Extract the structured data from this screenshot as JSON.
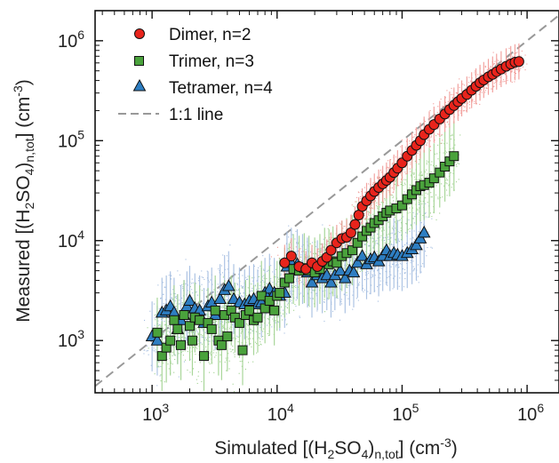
{
  "chart_data": {
    "type": "scatter",
    "x_scale": "log",
    "y_scale": "log",
    "xlim": [
      350,
      1800000
    ],
    "ylim": [
      300,
      2000000
    ],
    "x_ticks": [
      {
        "value": 1000,
        "base": "10",
        "exp": "3"
      },
      {
        "value": 10000,
        "base": "10",
        "exp": "4"
      },
      {
        "value": 100000,
        "base": "10",
        "exp": "5"
      },
      {
        "value": 1000000,
        "base": "10",
        "exp": "6"
      }
    ],
    "y_ticks": [
      {
        "value": 1000,
        "base": "10",
        "exp": "3"
      },
      {
        "value": 10000,
        "base": "10",
        "exp": "4"
      },
      {
        "value": 100000,
        "base": "10",
        "exp": "5"
      },
      {
        "value": 1000000,
        "base": "10",
        "exp": "6"
      }
    ],
    "xlabel": {
      "pre": "Simulated [(H",
      "sub1": "2",
      "mid": "SO",
      "sub2": "4",
      "close": ")",
      "sub3": "n,tot",
      "post": "] (cm",
      "sup": "-3",
      "end": ")"
    },
    "ylabel": {
      "pre": "Measured [(H",
      "sub1": "2",
      "mid": "SO",
      "sub2": "4",
      "close": ")",
      "sub3": "n,tot",
      "post": "] (cm",
      "sup": "-3",
      "end": ")"
    },
    "legend_position": "top-left",
    "grid": false,
    "reference_line": {
      "name": "1:1 line",
      "color": "#999999",
      "style": "dashed"
    },
    "series": [
      {
        "name": "Dimer, n=2",
        "marker": "circle",
        "color": "#e8241c",
        "scatter_color": "#f19a96",
        "points": [
          [
            11500,
            6000
          ],
          [
            13000,
            7000
          ],
          [
            15000,
            5500
          ],
          [
            17000,
            5200
          ],
          [
            19000,
            6000
          ],
          [
            21000,
            5500
          ],
          [
            23000,
            6200
          ],
          [
            25000,
            6800
          ],
          [
            27000,
            8000
          ],
          [
            30000,
            9500
          ],
          [
            33000,
            10500
          ],
          [
            36000,
            10800
          ],
          [
            39000,
            12000
          ],
          [
            42000,
            14500
          ],
          [
            45000,
            18000
          ],
          [
            48000,
            22000
          ],
          [
            52000,
            25000
          ],
          [
            56000,
            28000
          ],
          [
            60000,
            31000
          ],
          [
            65000,
            34000
          ],
          [
            70000,
            37000
          ],
          [
            75000,
            40000
          ],
          [
            80000,
            43000
          ],
          [
            86000,
            48000
          ],
          [
            92000,
            53000
          ],
          [
            100000,
            60000
          ],
          [
            110000,
            70000
          ],
          [
            120000,
            80000
          ],
          [
            130000,
            90000
          ],
          [
            140000,
            100000
          ],
          [
            150000,
            115000
          ],
          [
            165000,
            130000
          ],
          [
            180000,
            145000
          ],
          [
            200000,
            165000
          ],
          [
            220000,
            185000
          ],
          [
            240000,
            205000
          ],
          [
            260000,
            225000
          ],
          [
            280000,
            245000
          ],
          [
            300000,
            265000
          ],
          [
            330000,
            290000
          ],
          [
            360000,
            320000
          ],
          [
            390000,
            350000
          ],
          [
            420000,
            380000
          ],
          [
            450000,
            405000
          ],
          [
            490000,
            435000
          ],
          [
            530000,
            460000
          ],
          [
            570000,
            490000
          ],
          [
            620000,
            520000
          ],
          [
            680000,
            555000
          ],
          [
            740000,
            585000
          ],
          [
            800000,
            610000
          ],
          [
            860000,
            620000
          ]
        ]
      },
      {
        "name": "Trimer, n=3",
        "marker": "square",
        "color": "#4aa23c",
        "scatter_color": "#9fd28f",
        "points": [
          [
            1100,
            1200
          ],
          [
            1200,
            700
          ],
          [
            1300,
            850
          ],
          [
            1400,
            1000
          ],
          [
            1500,
            1600
          ],
          [
            1600,
            1300
          ],
          [
            1700,
            900
          ],
          [
            1800,
            1800
          ],
          [
            2000,
            1400
          ],
          [
            2100,
            1000
          ],
          [
            2200,
            1700
          ],
          [
            2400,
            1600
          ],
          [
            2600,
            700
          ],
          [
            2800,
            1500
          ],
          [
            3000,
            1300
          ],
          [
            3200,
            2000
          ],
          [
            3400,
            1000
          ],
          [
            3600,
            900
          ],
          [
            3800,
            1800
          ],
          [
            4000,
            1100
          ],
          [
            4300,
            2000
          ],
          [
            4600,
            1700
          ],
          [
            5000,
            1500
          ],
          [
            5300,
            800
          ],
          [
            5600,
            1800
          ],
          [
            6000,
            2000
          ],
          [
            6500,
            1600
          ],
          [
            7000,
            1700
          ],
          [
            7500,
            2800
          ],
          [
            8000,
            2100
          ],
          [
            8700,
            2500
          ],
          [
            9500,
            2000
          ],
          [
            10000,
            2800
          ],
          [
            10500,
            3000
          ],
          [
            11500,
            3800
          ],
          [
            12500,
            4200
          ],
          [
            13500,
            5200
          ],
          [
            15000,
            5000
          ],
          [
            16500,
            5300
          ],
          [
            18000,
            5000
          ],
          [
            20000,
            4800
          ],
          [
            22000,
            5200
          ],
          [
            24000,
            6000
          ],
          [
            26000,
            5800
          ],
          [
            28000,
            6200
          ],
          [
            30000,
            6000
          ],
          [
            33000,
            7000
          ],
          [
            36000,
            7500
          ],
          [
            40000,
            8000
          ],
          [
            44000,
            9500
          ],
          [
            48000,
            11000
          ],
          [
            52000,
            12500
          ],
          [
            56000,
            13500
          ],
          [
            60000,
            15000
          ],
          [
            65000,
            16000
          ],
          [
            70000,
            17500
          ],
          [
            75000,
            19000
          ],
          [
            80000,
            20000
          ],
          [
            90000,
            21000
          ],
          [
            100000,
            22500
          ],
          [
            110000,
            26000
          ],
          [
            120000,
            29000
          ],
          [
            130000,
            32000
          ],
          [
            140000,
            35000
          ],
          [
            150000,
            36000
          ],
          [
            165000,
            38000
          ],
          [
            180000,
            42000
          ],
          [
            200000,
            48000
          ],
          [
            220000,
            55000
          ],
          [
            240000,
            62000
          ],
          [
            260000,
            70000
          ]
        ]
      },
      {
        "name": "Tetramer, n=4",
        "marker": "triangle",
        "color": "#2e7ec2",
        "scatter_color": "#a4bde0",
        "points": [
          [
            1000,
            1100
          ],
          [
            1100,
            1000
          ],
          [
            1200,
            1900
          ],
          [
            1300,
            2000
          ],
          [
            1400,
            2200
          ],
          [
            1500,
            1900
          ],
          [
            1600,
            1300
          ],
          [
            1700,
            1600
          ],
          [
            1800,
            1800
          ],
          [
            1900,
            2200
          ],
          [
            2000,
            2500
          ],
          [
            2200,
            2100
          ],
          [
            2400,
            2000
          ],
          [
            2600,
            1500
          ],
          [
            2800,
            2200
          ],
          [
            3000,
            2400
          ],
          [
            3200,
            1800
          ],
          [
            3500,
            2600
          ],
          [
            3800,
            3200
          ],
          [
            4100,
            3500
          ],
          [
            4500,
            2600
          ],
          [
            5000,
            2400
          ],
          [
            5500,
            2300
          ],
          [
            6000,
            2500
          ],
          [
            6500,
            2600
          ],
          [
            7000,
            2300
          ],
          [
            7500,
            2400
          ],
          [
            8000,
            3000
          ],
          [
            8700,
            3300
          ],
          [
            9500,
            3000
          ],
          [
            10500,
            2800
          ],
          [
            11500,
            3000
          ],
          [
            12000,
            5500
          ],
          [
            13000,
            6000
          ],
          [
            14500,
            5800
          ],
          [
            16000,
            5200
          ],
          [
            17500,
            4800
          ],
          [
            19000,
            3800
          ],
          [
            21000,
            4500
          ],
          [
            23000,
            4200
          ],
          [
            25000,
            4500
          ],
          [
            27000,
            3800
          ],
          [
            29000,
            4500
          ],
          [
            32000,
            5000
          ],
          [
            35000,
            4200
          ],
          [
            38000,
            5000
          ],
          [
            41000,
            4800
          ],
          [
            44000,
            6000
          ],
          [
            48000,
            7000
          ],
          [
            52000,
            5800
          ],
          [
            56000,
            6500
          ],
          [
            60000,
            6800
          ],
          [
            65000,
            6200
          ],
          [
            70000,
            7000
          ],
          [
            75000,
            8000
          ],
          [
            80000,
            7000
          ],
          [
            86000,
            7500
          ],
          [
            92000,
            7200
          ],
          [
            100000,
            7000
          ],
          [
            110000,
            7500
          ],
          [
            120000,
            8200
          ],
          [
            130000,
            9000
          ],
          [
            140000,
            10500
          ],
          [
            150000,
            12000
          ]
        ]
      }
    ]
  }
}
